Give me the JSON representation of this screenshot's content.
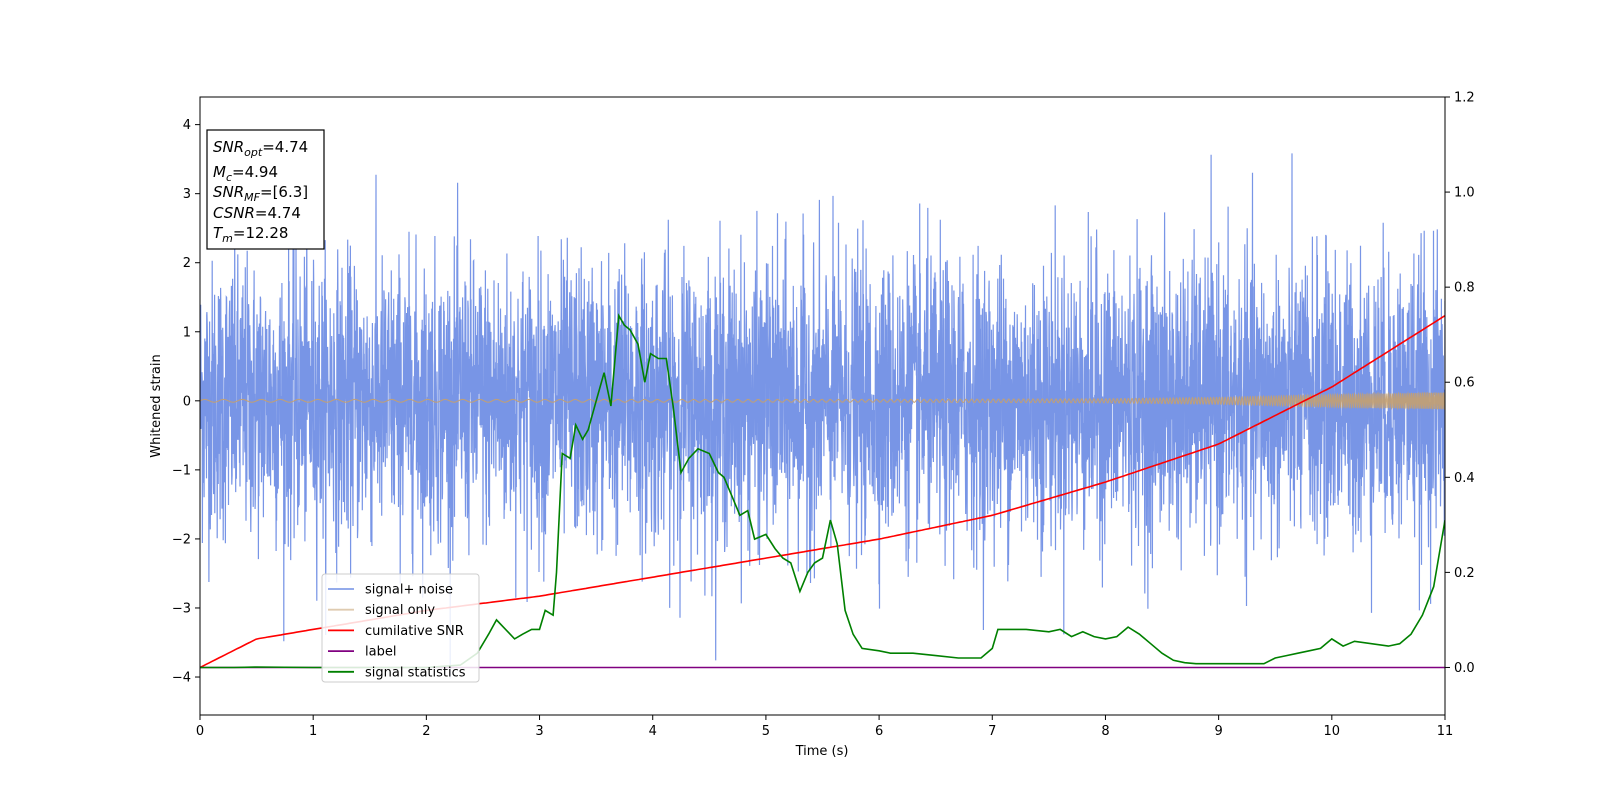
{
  "chart_data": {
    "type": "line",
    "xlabel": "Time (s)",
    "ylabel_left": "Whitened strain",
    "ylabel_right": "",
    "xlim": [
      0,
      11
    ],
    "ylim_left": [
      -4.55,
      4.4
    ],
    "ylim_right": [
      -0.1,
      1.2
    ],
    "x_ticks": [
      0,
      1,
      2,
      3,
      4,
      5,
      6,
      7,
      8,
      9,
      10,
      11
    ],
    "y_ticks_left": [
      -4,
      -3,
      -2,
      -1,
      0,
      1,
      2,
      3,
      4
    ],
    "y_ticks_right": [
      0.0,
      0.2,
      0.4,
      0.6,
      0.8,
      1.0,
      1.2
    ],
    "y_ticks_right_labels": [
      "0.0",
      "0.2",
      "0.4",
      "0.6",
      "0.8",
      "1.0",
      "1.2"
    ],
    "grid": false,
    "legend_placement": "lower-left",
    "colors": {
      "signal_noise": "#7895e6",
      "signal_only": "#c4a070",
      "cumulative_snr": "#ff0000",
      "label": "#800080",
      "signal_statistics": "#008000"
    },
    "series": [
      {
        "name": "signal+ noise",
        "axis": "left",
        "color": "#7895e6",
        "style": "dense noise",
        "spread_sd": 1.0,
        "approx_range": [
          -4.15,
          3.8
        ]
      },
      {
        "name": "signal only",
        "axis": "left",
        "color": "#c4a070",
        "style": "chirp",
        "envelope": {
          "x": [
            0,
            6,
            8,
            9,
            10,
            11
          ],
          "amplitude": [
            0.02,
            0.02,
            0.03,
            0.05,
            0.09,
            0.12
          ]
        }
      },
      {
        "name": "cumilative SNR",
        "axis": "right",
        "color": "#ff0000",
        "x": [
          0,
          0.5,
          1,
          2,
          3,
          4,
          5,
          6,
          7,
          8,
          9,
          10,
          11
        ],
        "y": [
          0.0,
          0.06,
          0.08,
          0.12,
          0.15,
          0.19,
          0.23,
          0.27,
          0.32,
          0.39,
          0.47,
          0.59,
          0.74
        ]
      },
      {
        "name": "label",
        "axis": "right",
        "color": "#800080",
        "x": [
          0,
          11
        ],
        "y": [
          0.0,
          0.0
        ]
      },
      {
        "name": "signal statistics",
        "axis": "right",
        "color": "#008000",
        "x": [
          0,
          0.3,
          0.5,
          1,
          2,
          2.3,
          2.45,
          2.55,
          2.62,
          2.7,
          2.78,
          2.85,
          2.93,
          3.0,
          3.05,
          3.12,
          3.15,
          3.2,
          3.27,
          3.32,
          3.38,
          3.43,
          3.5,
          3.57,
          3.63,
          3.7,
          3.75,
          3.8,
          3.87,
          3.93,
          3.98,
          4.05,
          4.12,
          4.18,
          4.25,
          4.32,
          4.4,
          4.5,
          4.58,
          4.63,
          4.7,
          4.77,
          4.84,
          4.9,
          5.0,
          5.08,
          5.15,
          5.22,
          5.3,
          5.37,
          5.43,
          5.5,
          5.57,
          5.63,
          5.7,
          5.77,
          5.85,
          6.0,
          6.1,
          6.3,
          6.5,
          6.7,
          6.9,
          7.0,
          7.05,
          7.3,
          7.5,
          7.6,
          7.7,
          7.8,
          7.9,
          8.0,
          8.1,
          8.2,
          8.3,
          8.4,
          8.5,
          8.6,
          8.7,
          8.8,
          9.0,
          9.2,
          9.4,
          9.5,
          9.6,
          9.7,
          9.8,
          9.9,
          10.0,
          10.1,
          10.2,
          10.5,
          10.6,
          10.7,
          10.8,
          10.9,
          11.0
        ],
        "y": [
          0.0,
          0.0,
          0.001,
          0.0,
          0.0,
          0.005,
          0.03,
          0.07,
          0.1,
          0.08,
          0.06,
          0.07,
          0.08,
          0.08,
          0.12,
          0.11,
          0.2,
          0.45,
          0.44,
          0.51,
          0.48,
          0.5,
          0.56,
          0.62,
          0.55,
          0.74,
          0.72,
          0.71,
          0.68,
          0.6,
          0.66,
          0.65,
          0.65,
          0.55,
          0.41,
          0.44,
          0.46,
          0.45,
          0.41,
          0.4,
          0.36,
          0.32,
          0.33,
          0.27,
          0.28,
          0.25,
          0.23,
          0.22,
          0.16,
          0.2,
          0.22,
          0.23,
          0.31,
          0.26,
          0.12,
          0.07,
          0.04,
          0.035,
          0.03,
          0.03,
          0.025,
          0.02,
          0.02,
          0.04,
          0.08,
          0.08,
          0.075,
          0.08,
          0.065,
          0.075,
          0.065,
          0.06,
          0.065,
          0.085,
          0.07,
          0.05,
          0.03,
          0.015,
          0.01,
          0.008,
          0.008,
          0.008,
          0.008,
          0.02,
          0.025,
          0.03,
          0.035,
          0.04,
          0.06,
          0.045,
          0.055,
          0.045,
          0.05,
          0.07,
          0.11,
          0.17,
          0.31
        ]
      }
    ],
    "info_box": {
      "lines": [
        {
          "main": "SNR",
          "sub": "opt",
          "rest": "=4.74"
        },
        {
          "main": "M",
          "sub": "c",
          "rest": "=4.94"
        },
        {
          "main": "SNR",
          "sub": "MF",
          "rest": "=[6.3]"
        },
        {
          "main": "CSNR",
          "sub": "",
          "rest": "=4.74"
        },
        {
          "main": "T",
          "sub": "m",
          "rest": "=12.28"
        }
      ]
    },
    "legend": [
      "signal+ noise",
      "signal only",
      "cumilative SNR",
      "label",
      "signal statistics"
    ]
  }
}
